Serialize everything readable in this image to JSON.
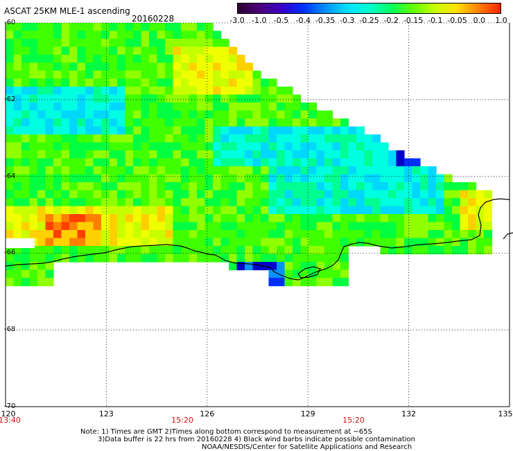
{
  "header": {
    "title": "ASCAT 25KM MLE-1 ascending",
    "date": "20160228"
  },
  "colorbar": {
    "labels": [
      "-3.0",
      "-1.0",
      "-0.5",
      "-0.4",
      "-0.35",
      "-0.3",
      "-0.25",
      "-0.2",
      "-0.15",
      "-0.1",
      "-0.05",
      "0.0",
      "1.0"
    ],
    "colors": [
      "#2a0033",
      "#4a0078",
      "#3a00c8",
      "#0030ff",
      "#0090ff",
      "#00e0ff",
      "#00ffd0",
      "#00ff60",
      "#60ff00",
      "#c8ff00",
      "#ffe000",
      "#ff8000",
      "#ff2000"
    ]
  },
  "axes": {
    "lat_labels": [
      "-60",
      "-62",
      "-64",
      "-66",
      "-68",
      "-70"
    ],
    "lat_values": [
      -60,
      -62,
      -64,
      -66,
      -68,
      -70
    ],
    "lon_labels": [
      "120",
      "123",
      "126",
      "129",
      "132",
      "135"
    ],
    "lon_values": [
      120,
      123,
      126,
      129,
      132,
      135
    ],
    "time_labels": [
      "13:40",
      "15:20",
      "15:20"
    ]
  },
  "notes": {
    "line1": "Note: 1) Times are GMT 2)Times along bottom correspond to measurement at ~65S",
    "line2": "3)Data buffer is 22 hrs from 20160228 4) Black wind barbs indicate possible contamination",
    "line3": "NOAA/NESDIS/Center for Satellite Applications and Research"
  },
  "legend_colors": {
    "coast": "#000000",
    "grid": "#000000"
  }
}
